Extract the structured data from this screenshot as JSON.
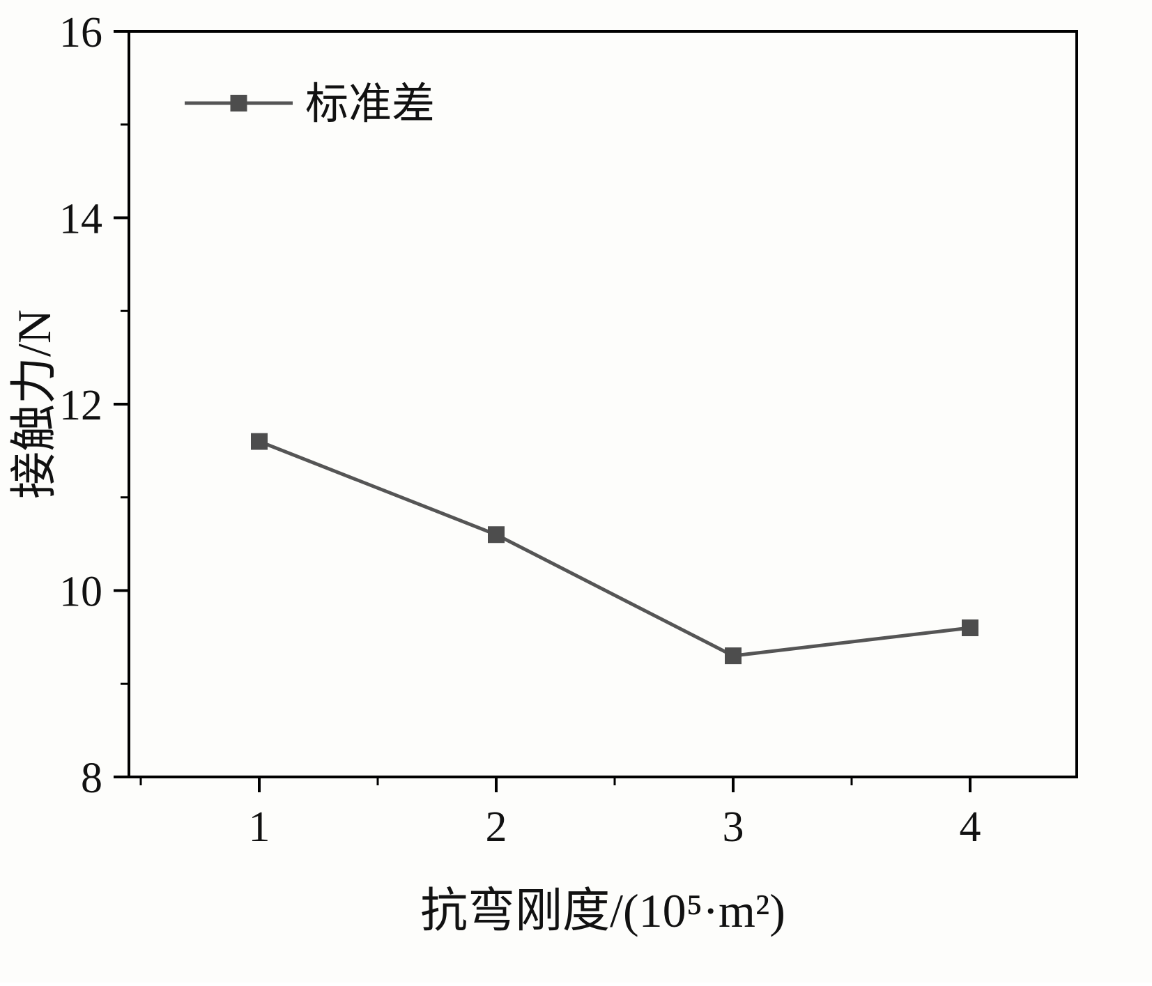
{
  "chart_data": {
    "type": "line",
    "title": "",
    "xlabel": "抗弯刚度/(10⁵·m²)",
    "ylabel": "接触力/N",
    "xlim": [
      0.45,
      4.45
    ],
    "ylim": [
      8,
      16
    ],
    "x_ticks": [
      1,
      2,
      3,
      4
    ],
    "y_ticks": [
      8,
      10,
      12,
      14,
      16
    ],
    "x_minor_ticks": [
      0.5,
      1.5,
      2.5,
      3.5
    ],
    "y_minor_ticks": [
      9,
      11,
      13,
      15
    ],
    "grid": false,
    "legend_position": "top-left",
    "series": [
      {
        "name": "标准差",
        "x": [
          1,
          2,
          3,
          4
        ],
        "values": [
          11.6,
          10.6,
          9.3,
          9.6
        ],
        "marker": "square",
        "line_color": "#555555",
        "marker_color": "#4d4d4d"
      }
    ],
    "axis_color": "#000000",
    "background_color": "#fdfdfb"
  }
}
